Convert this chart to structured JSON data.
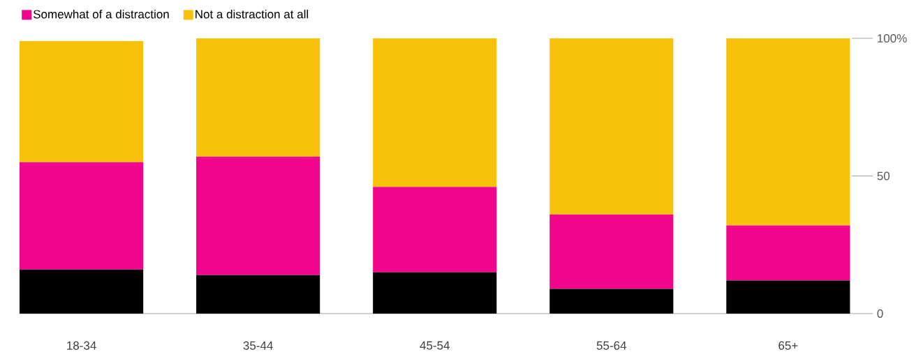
{
  "chart_data": {
    "type": "bar",
    "stacked": true,
    "categories": [
      "18-34",
      "35-44",
      "45-54",
      "55-64",
      "65+"
    ],
    "series": [
      {
        "color": "#000000",
        "values": [
          16,
          14,
          15,
          9,
          12
        ]
      },
      {
        "name": "Somewhat of a distraction",
        "color": "#f0058c",
        "values": [
          39,
          43,
          31,
          27,
          20
        ]
      },
      {
        "name": "Not a distraction at all",
        "color": "#f9c20a",
        "values": [
          44,
          43,
          54,
          64,
          68
        ]
      }
    ],
    "ylim": [
      0,
      100
    ],
    "yticks": [
      0,
      50,
      {
        "value": 100,
        "label": "100%"
      }
    ],
    "legend": "top left"
  }
}
